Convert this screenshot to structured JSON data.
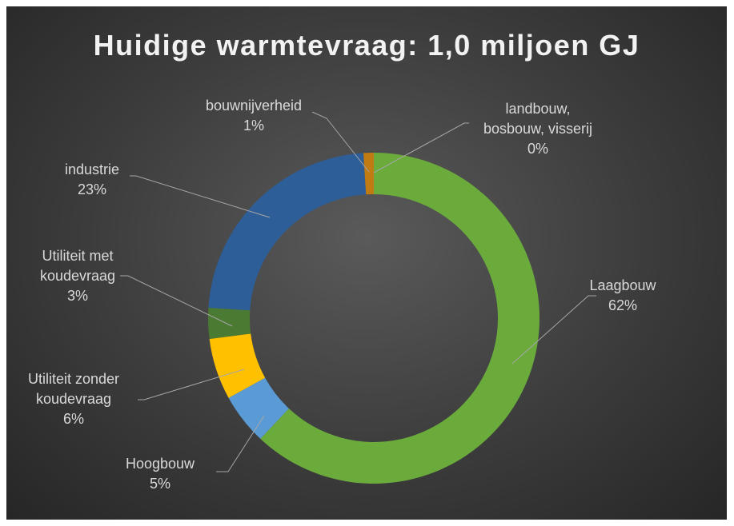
{
  "chart_data": {
    "type": "doughnut",
    "title": "Huidige warmtevraag: 1,0 miljoen GJ",
    "categories": [
      "landbouw, bosbouw, visserij",
      "Laagbouw",
      "Hoogbouw",
      "Utiliteit zonder koudevraag",
      "Utiliteit met koudevraag",
      "industrie",
      "bouwnijverheid"
    ],
    "values": [
      0,
      62,
      5,
      6,
      3,
      23,
      1
    ],
    "value_labels": [
      "0%",
      "62%",
      "5%",
      "6%",
      "3%",
      "23%",
      "1%"
    ],
    "colors": [
      "#8cc063",
      "#6aab3c",
      "#5b9bd5",
      "#ffc000",
      "#4b7a32",
      "#2e5e98",
      "#c07b12"
    ]
  }
}
